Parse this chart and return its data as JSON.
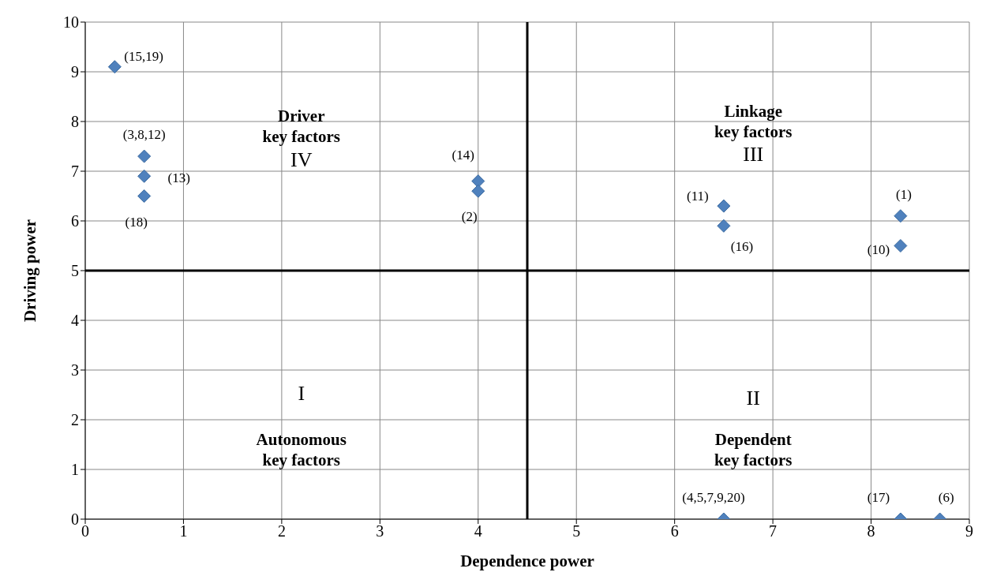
{
  "chart_data": {
    "type": "scatter",
    "xlabel": "Dependence power",
    "ylabel": "Driving power",
    "x": [
      0.3,
      0.6,
      0.6,
      0.6,
      4.0,
      4.0,
      6.5,
      6.5,
      8.3,
      8.3,
      6.5,
      8.3,
      8.7
    ],
    "values": [
      9.1,
      7.3,
      6.9,
      6.5,
      6.8,
      6.6,
      6.3,
      5.9,
      6.1,
      5.5,
      0,
      0,
      0
    ],
    "color": "#4f81bd",
    "marker": "diamond",
    "xlim": [
      0,
      9
    ],
    "xticks": [
      0,
      1,
      2,
      3,
      4,
      5,
      6,
      7,
      8,
      9
    ],
    "ylim": [
      0,
      10
    ],
    "yticks": [
      0,
      1,
      2,
      3,
      4,
      5,
      6,
      7,
      8,
      9,
      10
    ],
    "grid": true,
    "legend": false,
    "ref_lines": [
      {
        "axis": "x",
        "value": 4.5,
        "color": "#000000"
      },
      {
        "axis": "y",
        "value": 5,
        "color": "#000000"
      }
    ],
    "annotations": [
      "Driver\nkey factors",
      "IV",
      "Linkage\nkey factors",
      "III",
      "I",
      "Autonomous\nkey factors",
      "II",
      "Dependent\nkey factors",
      {
        "text": "(15,19)",
        "x": 0.3,
        "y": 9.1
      },
      {
        "text": "(3,8,12)",
        "x": 0.6,
        "y": 7.3
      },
      {
        "text": "(13)",
        "x": 0.6,
        "y": 6.9
      },
      {
        "text": "(18)",
        "x": 0.6,
        "y": 6.5
      },
      {
        "text": "(14)",
        "x": 4.0,
        "y": 6.8
      },
      {
        "text": "(2)",
        "x": 4.0,
        "y": 6.6
      },
      {
        "text": "(11)",
        "x": 6.5,
        "y": 6.3
      },
      {
        "text": "(16)",
        "x": 6.5,
        "y": 5.9
      },
      {
        "text": "(1)",
        "x": 8.3,
        "y": 6.1
      },
      {
        "text": "(10)",
        "x": 8.3,
        "y": 5.5
      },
      {
        "text": "(4,5,7,9,20)",
        "x": 6.5,
        "y": 0
      },
      {
        "text": "(17)",
        "x": 8.3,
        "y": 0
      },
      {
        "text": "(6)",
        "x": 8.7,
        "y": 0
      }
    ]
  }
}
